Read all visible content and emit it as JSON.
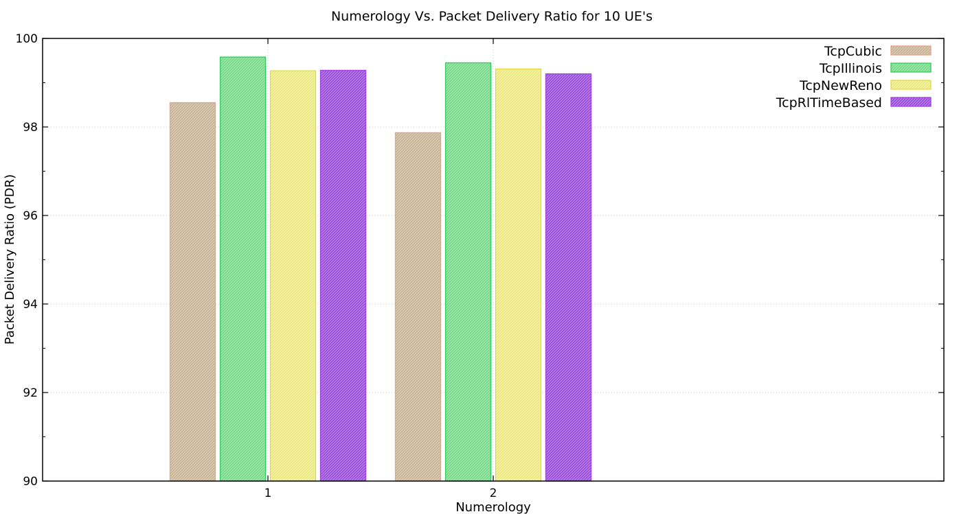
{
  "chart_data": {
    "type": "bar",
    "title": "Numerology Vs. Packet Delivery Ratio for 10 UE's",
    "xlabel": "Numerology",
    "ylabel": "Packet Delivery Ratio (PDR)",
    "ylim": [
      90,
      100
    ],
    "yticks": [
      "90",
      "92",
      "94",
      "96",
      "98",
      "100"
    ],
    "categories": [
      "1",
      "2"
    ],
    "grid": true,
    "legend_position": "top-right",
    "series": [
      {
        "name": "TcpCubic",
        "values": [
          98.55,
          97.87
        ],
        "color": "#e8a088",
        "fill": "#c9b79b"
      },
      {
        "name": "TcpIllinois",
        "values": [
          99.58,
          99.45
        ],
        "color": "#2ecc5a",
        "fill": "#7fd98f"
      },
      {
        "name": "TcpNewReno",
        "values": [
          99.27,
          99.31
        ],
        "color": "#e6d84a",
        "fill": "#ecea8a"
      },
      {
        "name": "TcpRlTimeBased",
        "values": [
          99.28,
          99.2
        ],
        "color": "#a040e0",
        "fill": "#9a55d8"
      }
    ]
  }
}
